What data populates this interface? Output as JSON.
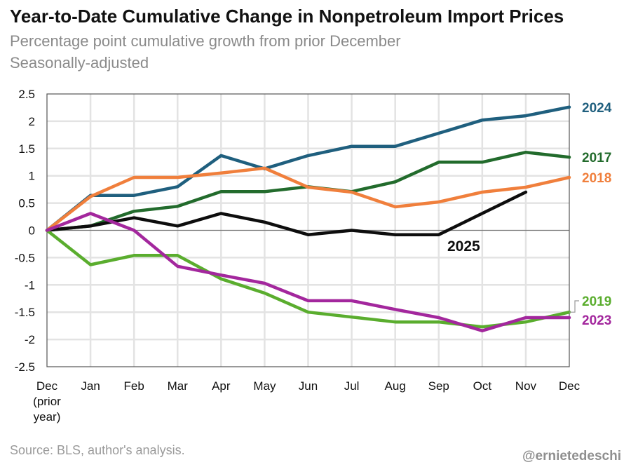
{
  "title": "Year-to-Date Cumulative Change in Nonpetroleum Import Prices",
  "subtitle_line1": "Percentage point cumulative growth from prior December",
  "subtitle_line2": "Seasonally-adjusted",
  "source": "Source: BLS, author's analysis.",
  "handle": "@ernietedeschi",
  "chart_data": {
    "type": "line",
    "x": [
      "Dec",
      "Jan",
      "Feb",
      "Mar",
      "Apr",
      "May",
      "Jun",
      "Jul",
      "Aug",
      "Sep",
      "Oct",
      "Nov",
      "Dec"
    ],
    "x_first_label_lines": [
      "Dec",
      "(prior",
      "year)"
    ],
    "ylim": [
      -2.5,
      2.5
    ],
    "yticks": [
      2.5,
      2,
      1.5,
      1,
      0.5,
      0,
      -0.5,
      -1,
      -1.5,
      -2,
      -2.5
    ],
    "ytick_labels": [
      "2.5",
      "2",
      "1.5",
      "1",
      "0.5",
      "0",
      "-0.5",
      "-1",
      "-1.5",
      "-2",
      "-2.5"
    ],
    "grid": true,
    "series": [
      {
        "name": "2024",
        "color": "#1f5f7e",
        "values": [
          0,
          0.64,
          0.64,
          0.8,
          1.37,
          1.13,
          1.37,
          1.54,
          1.54,
          1.78,
          2.02,
          2.1,
          2.26
        ]
      },
      {
        "name": "2017",
        "color": "#226b2c",
        "values": [
          0,
          0.08,
          0.35,
          0.44,
          0.71,
          0.71,
          0.8,
          0.71,
          0.89,
          1.25,
          1.25,
          1.43,
          1.34
        ]
      },
      {
        "name": "2018",
        "color": "#f07f3c",
        "values": [
          0,
          0.62,
          0.97,
          0.97,
          1.05,
          1.14,
          0.79,
          0.7,
          0.43,
          0.52,
          0.7,
          0.79,
          0.97
        ]
      },
      {
        "name": "2025",
        "color": "#0d0d0d",
        "values": [
          0,
          0.08,
          0.23,
          0.08,
          0.31,
          0.15,
          -0.08,
          0,
          -0.08,
          -0.08,
          0.31,
          0.7,
          null
        ]
      },
      {
        "name": "2019",
        "color": "#5aad2e",
        "values": [
          0,
          -0.63,
          -0.46,
          -0.46,
          -0.89,
          -1.15,
          -1.5,
          -1.59,
          -1.68,
          -1.68,
          -1.77,
          -1.68,
          -1.5
        ]
      },
      {
        "name": "2023",
        "color": "#a3279d",
        "values": [
          0,
          0.31,
          0,
          -0.66,
          -0.82,
          -0.97,
          -1.29,
          -1.29,
          -1.45,
          -1.6,
          -1.84,
          -1.6,
          -1.6
        ]
      }
    ]
  }
}
